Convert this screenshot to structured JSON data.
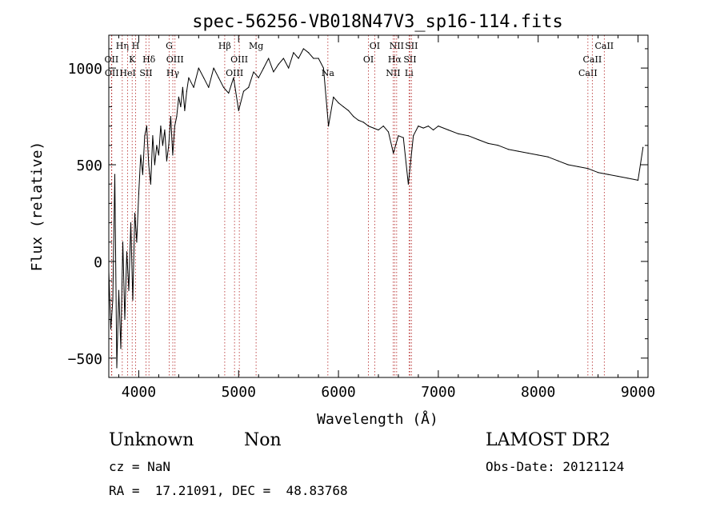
{
  "chart_data": {
    "type": "line",
    "title": "spec-56256-VB018N47V3_sp16-114.fits",
    "xlabel": "Wavelength (Å)",
    "ylabel": "Flux (relative)",
    "xlim": [
      3700,
      9100
    ],
    "ylim": [
      -600,
      1170
    ],
    "x_ticks": [
      4000,
      5000,
      6000,
      7000,
      8000,
      9000
    ],
    "y_ticks": [
      -500,
      0,
      500,
      1000
    ],
    "grid": false,
    "line_markers": [
      {
        "label": "OII",
        "wavelength": 3727,
        "row": 2
      },
      {
        "label": "OII",
        "wavelength": 3730,
        "row": 3
      },
      {
        "label": "Hη",
        "wavelength": 3835,
        "row": 1
      },
      {
        "label": "HeI",
        "wavelength": 3889,
        "row": 3
      },
      {
        "label": "K",
        "wavelength": 3934,
        "row": 2
      },
      {
        "label": "H",
        "wavelength": 3969,
        "row": 1
      },
      {
        "label": "SII",
        "wavelength": 4072,
        "row": 3
      },
      {
        "label": "Hδ",
        "wavelength": 4102,
        "row": 2
      },
      {
        "label": "G",
        "wavelength": 4305,
        "row": 1
      },
      {
        "label": "Hγ",
        "wavelength": 4341,
        "row": 3
      },
      {
        "label": "OIII",
        "wavelength": 4363,
        "row": 2
      },
      {
        "label": "Hβ",
        "wavelength": 4861,
        "row": 1
      },
      {
        "label": "OIII",
        "wavelength": 4959,
        "row": 3
      },
      {
        "label": "OIII",
        "wavelength": 5007,
        "row": 2
      },
      {
        "label": "Mg",
        "wavelength": 5175,
        "row": 1
      },
      {
        "label": "Na",
        "wavelength": 5894,
        "row": 3
      },
      {
        "label": "OI",
        "wavelength": 6300,
        "row": 2
      },
      {
        "label": "OI",
        "wavelength": 6363,
        "row": 1
      },
      {
        "label": "NII",
        "wavelength": 6548,
        "row": 3
      },
      {
        "label": "Hα",
        "wavelength": 6563,
        "row": 2
      },
      {
        "label": "NII",
        "wavelength": 6583,
        "row": 1
      },
      {
        "label": "Li",
        "wavelength": 6707,
        "row": 3
      },
      {
        "label": "SII",
        "wavelength": 6716,
        "row": 2
      },
      {
        "label": "SII",
        "wavelength": 6731,
        "row": 1
      },
      {
        "label": "CaII",
        "wavelength": 8498,
        "row": 3
      },
      {
        "label": "CaII",
        "wavelength": 8542,
        "row": 2
      },
      {
        "label": "CaII",
        "wavelength": 8662,
        "row": 1
      }
    ],
    "series": [
      {
        "x": [
          3700,
          3720,
          3740,
          3760,
          3780,
          3800,
          3820,
          3840,
          3860,
          3880,
          3900,
          3920,
          3940,
          3960,
          3980,
          4000,
          4020,
          4040,
          4060,
          4080,
          4100,
          4120,
          4140,
          4160,
          4180,
          4200,
          4220,
          4240,
          4260,
          4280,
          4300,
          4320,
          4340,
          4360,
          4380,
          4400,
          4420,
          4440,
          4460,
          4480,
          4500,
          4550,
          4600,
          4650,
          4700,
          4750,
          4800,
          4850,
          4900,
          4950,
          5000,
          5050,
          5100,
          5150,
          5200,
          5250,
          5300,
          5350,
          5400,
          5450,
          5500,
          5550,
          5600,
          5650,
          5700,
          5750,
          5800,
          5850,
          5900,
          5950,
          6000,
          6050,
          6100,
          6150,
          6200,
          6250,
          6300,
          6350,
          6400,
          6450,
          6500,
          6550,
          6600,
          6650,
          6700,
          6750,
          6800,
          6850,
          6900,
          6950,
          7000,
          7100,
          7200,
          7300,
          7400,
          7500,
          7600,
          7700,
          7800,
          7900,
          8000,
          8100,
          8200,
          8300,
          8400,
          8500,
          8600,
          8700,
          8800,
          8900,
          9000,
          9050
        ],
        "y": [
          -50,
          -350,
          -200,
          450,
          -550,
          -150,
          -450,
          100,
          -300,
          50,
          -150,
          200,
          -200,
          250,
          100,
          350,
          550,
          450,
          650,
          700,
          500,
          400,
          650,
          500,
          600,
          550,
          700,
          600,
          680,
          520,
          600,
          750,
          550,
          700,
          750,
          850,
          800,
          900,
          780,
          880,
          950,
          900,
          1000,
          950,
          900,
          1000,
          950,
          900,
          870,
          950,
          780,
          880,
          900,
          980,
          950,
          1000,
          1050,
          980,
          1020,
          1050,
          1000,
          1080,
          1050,
          1100,
          1080,
          1050,
          1050,
          1000,
          700,
          850,
          820,
          800,
          780,
          750,
          730,
          720,
          700,
          690,
          680,
          700,
          670,
          560,
          650,
          640,
          400,
          650,
          700,
          690,
          700,
          680,
          700,
          680,
          660,
          650,
          630,
          610,
          600,
          580,
          570,
          560,
          550,
          540,
          520,
          500,
          490,
          480,
          460,
          450,
          440,
          430,
          420,
          590
        ]
      }
    ]
  },
  "info": {
    "class_label": "Unknown",
    "subclass_label": "Non",
    "survey": "LAMOST DR2",
    "cz": "cz = NaN",
    "obs_date": "Obs-Date: 20121124",
    "coords": "RA =  17.21091, DEC =  48.83768"
  }
}
